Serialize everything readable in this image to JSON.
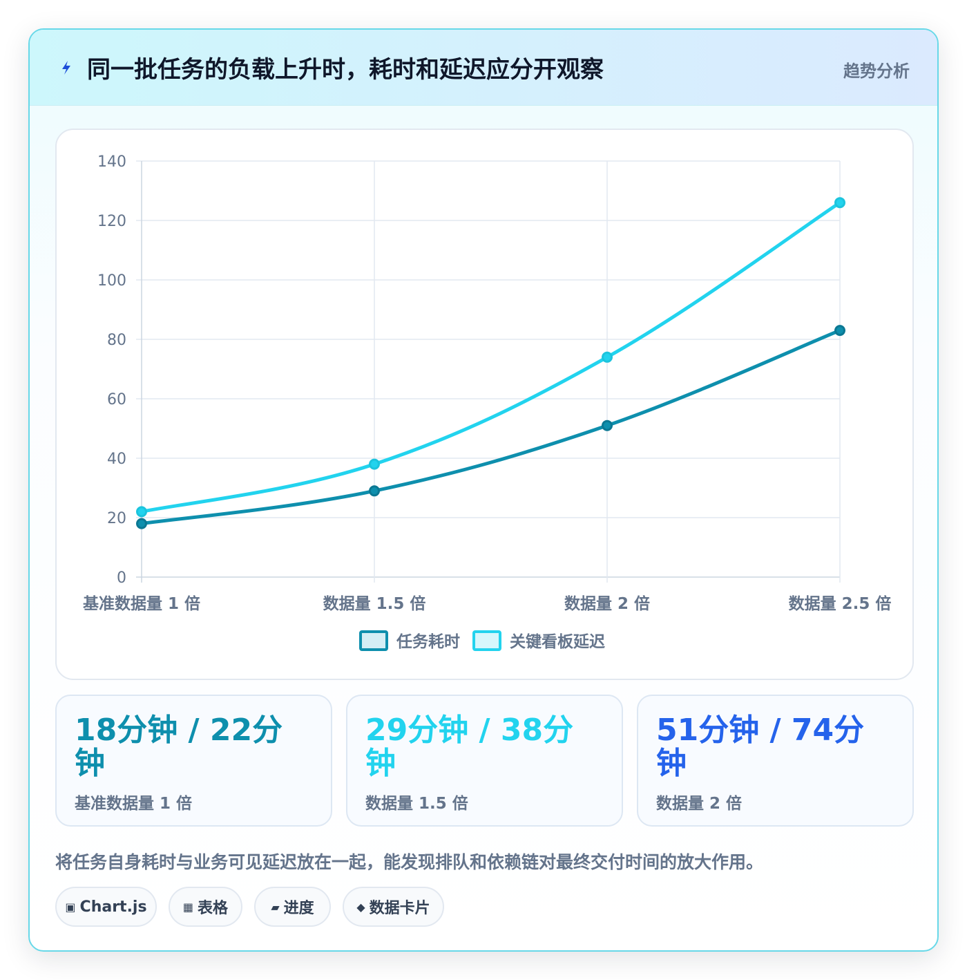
{
  "header": {
    "title": "同一批任务的负载上升时，耗时和延迟应分开观察",
    "tag": "趋势分析",
    "icon": "lightning-icon"
  },
  "chart_data": {
    "type": "line",
    "categories": [
      "基准数据量 1 倍",
      "数据量 1.5 倍",
      "数据量 2 倍",
      "数据量 2.5 倍"
    ],
    "series": [
      {
        "name": "任务耗时",
        "values": [
          18,
          29,
          51,
          83
        ],
        "color": "#0e8fad"
      },
      {
        "name": "关键看板延迟",
        "values": [
          22,
          38,
          74,
          126
        ],
        "color": "#22d3ee"
      }
    ],
    "ylim": [
      0,
      140
    ],
    "yticks": [
      0,
      20,
      40,
      60,
      80,
      100,
      120,
      140
    ],
    "grid": true,
    "legend": "bottom"
  },
  "stats": [
    {
      "value": "18分钟 / 22分钟",
      "label": "基准数据量 1 倍",
      "color": "#0e8fad"
    },
    {
      "value": "29分钟 / 38分钟",
      "label": "数据量 1.5 倍",
      "color": "#22d3ee"
    },
    {
      "value": "51分钟 / 74分钟",
      "label": "数据量 2 倍",
      "color": "#2563eb"
    }
  ],
  "note": "将任务自身耗时与业务可见延迟放在一起，能发现排队和依赖链对最终交付时间的放大作用。",
  "chips": [
    {
      "icon": "▣",
      "label": "Chart.js"
    },
    {
      "icon": "▦",
      "label": "表格"
    },
    {
      "icon": "▰",
      "label": "进度"
    },
    {
      "icon": "◆",
      "label": "数据卡片"
    }
  ]
}
